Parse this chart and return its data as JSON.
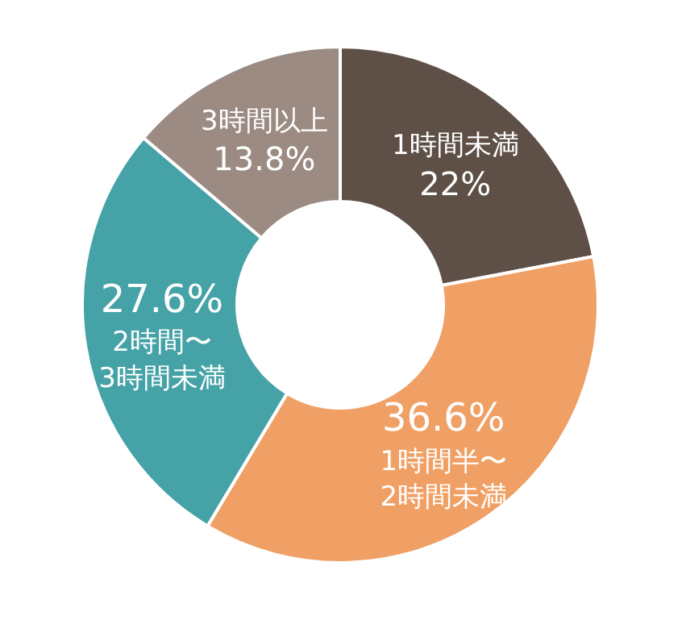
{
  "chart_data": {
    "type": "donut",
    "categories": [
      "1時間未満",
      "1時間半〜2時間未満",
      "2時間〜3時間未満",
      "3時間以上"
    ],
    "values": [
      22,
      36.6,
      27.6,
      13.8
    ],
    "value_labels": [
      "22%",
      "36.6%",
      "27.6%",
      "13.8%"
    ],
    "colors": [
      "#5f5047",
      "#f0a064",
      "#45a2a6",
      "#9b8b82"
    ]
  }
}
